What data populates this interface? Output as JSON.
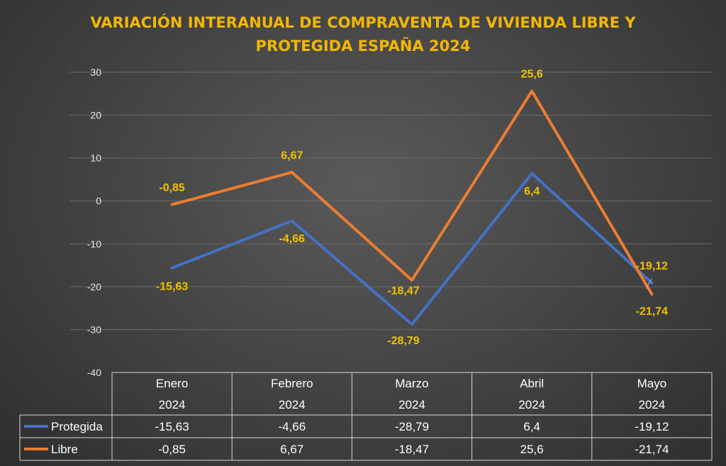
{
  "chart_data": {
    "type": "line",
    "title_lines": [
      "VARIACIÓN INTERANUAL DE COMPRAVENTA DE VIVIENDA LIBRE Y",
      "PROTEGIDA ESPAÑA 2024"
    ],
    "categories": [
      [
        "Enero",
        "2024"
      ],
      [
        "Febrero",
        "2024"
      ],
      [
        "Marzo",
        "2024"
      ],
      [
        "Abril",
        "2024"
      ],
      [
        "Mayo",
        "2024"
      ]
    ],
    "ylim": [
      -40,
      30
    ],
    "yticks": [
      30,
      20,
      10,
      0,
      -10,
      -20,
      -30,
      -40
    ],
    "grid": true,
    "legend": "data-table",
    "series": [
      {
        "name": "Protegida",
        "color": "#4472c4",
        "values": [
          -15.63,
          -4.66,
          -28.79,
          6.4,
          -19.12
        ],
        "labels": [
          "-15,63",
          "-4,66",
          "-28,79",
          "6,4",
          "-19,12"
        ]
      },
      {
        "name": "Libre",
        "color": "#ed7d31",
        "values": [
          -0.85,
          6.67,
          -18.47,
          25.6,
          -21.74
        ],
        "labels": [
          "-0,85",
          "6,67",
          "-18,47",
          "25,6",
          "-21,74"
        ]
      }
    ]
  }
}
